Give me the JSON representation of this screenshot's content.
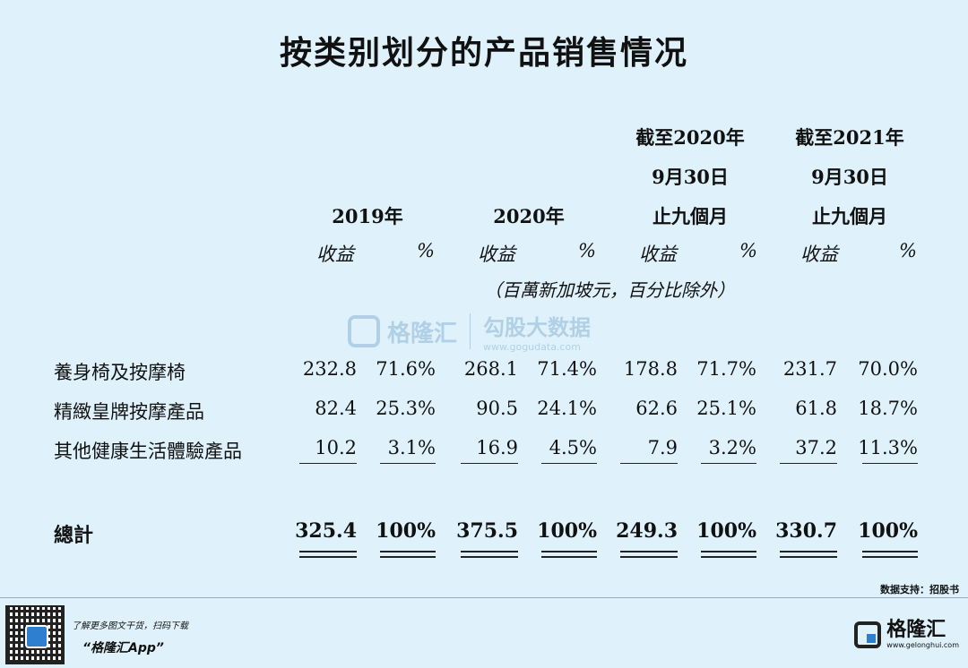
{
  "title": "按类别划分的产品销售情况",
  "headers": {
    "y2019": "2019年",
    "y2020": "2020年",
    "p2020": [
      "截至2020年",
      "9月30日",
      "止九個月"
    ],
    "p2021": [
      "截至2021年",
      "9月30日",
      "止九個月"
    ],
    "revenue": "收益",
    "percent": "%"
  },
  "unit_note": "（百萬新加坡元，百分比除外）",
  "rows": [
    {
      "label": "養身椅及按摩椅",
      "values": [
        "232.8",
        "71.6%",
        "268.1",
        "71.4%",
        "178.8",
        "71.7%",
        "231.7",
        "70.0%"
      ]
    },
    {
      "label": "精緻皇牌按摩產品",
      "values": [
        "82.4",
        "25.3%",
        "90.5",
        "24.1%",
        "62.6",
        "25.1%",
        "61.8",
        "18.7%"
      ]
    },
    {
      "label": "其他健康生活體驗產品",
      "values": [
        "10.2",
        "3.1%",
        "16.9",
        "4.5%",
        "7.9",
        "3.2%",
        "37.2",
        "11.3%"
      ]
    }
  ],
  "total": {
    "label": "總計",
    "values": [
      "325.4",
      "100%",
      "375.5",
      "100%",
      "249.3",
      "100%",
      "330.7",
      "100%"
    ]
  },
  "watermark": {
    "left": "格隆汇",
    "right": "勾股大数据",
    "url": "www.gogudata.com"
  },
  "source": "数据支持：招股书",
  "footer": {
    "line1": "了解更多图文干货，扫码下载",
    "line2": "“格隆汇App”",
    "brand": "格隆汇",
    "brand_url": "www.gelonghui.com"
  },
  "colors": {
    "background": "#dff2fb",
    "accent": "#2f7fd1"
  }
}
